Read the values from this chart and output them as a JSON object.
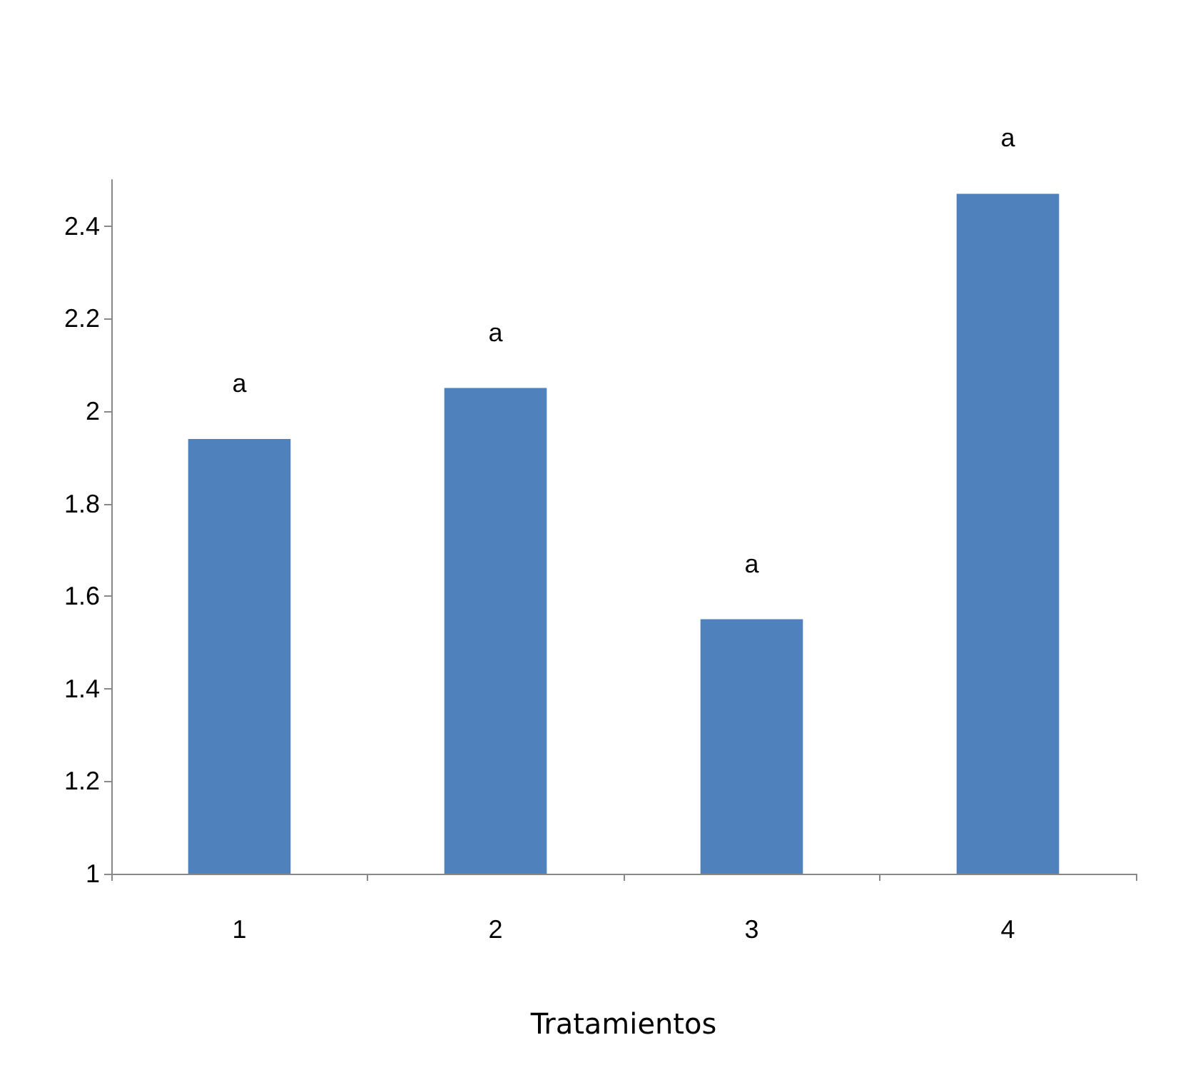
{
  "chart_data": {
    "type": "bar",
    "xlabel": "Tratamientos",
    "categories": [
      "1",
      "2",
      "3",
      "4"
    ],
    "values": [
      1.94,
      2.05,
      1.55,
      2.47
    ],
    "color": "#4f81bd",
    "ylim": [
      1,
      2.5
    ],
    "yticks": [
      1,
      1.2,
      1.4,
      1.6,
      1.8,
      2,
      2.2,
      2.4
    ],
    "grid": false,
    "annotations": [
      "a",
      "a",
      "a",
      "a"
    ]
  }
}
